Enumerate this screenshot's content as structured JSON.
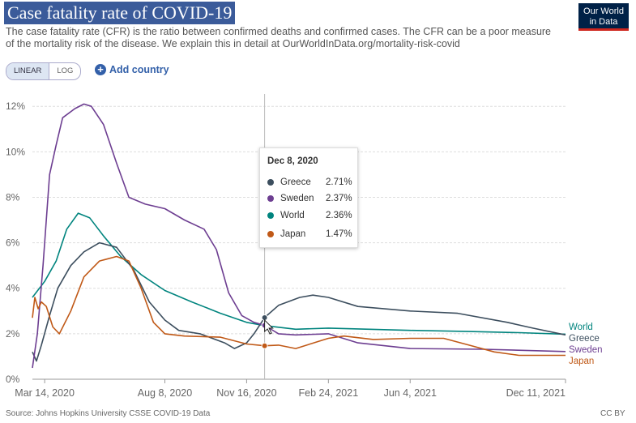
{
  "header": {
    "title": "Case fatality rate of COVID-19",
    "subtitle": "The case fatality rate (CFR) is the ratio between confirmed deaths and confirmed cases. The CFR can be a poor measure of the mortality risk of the disease. We explain this in detail at OurWorldInData.org/mortality-risk-covid",
    "logo_line1": "Our World",
    "logo_line2": "in Data"
  },
  "controls": {
    "linear_label": "LINEAR",
    "log_label": "LOG",
    "add_country_label": "Add country"
  },
  "tooltip": {
    "date": "Dec 8, 2020",
    "rows": [
      {
        "name": "Greece",
        "value": "2.71%"
      },
      {
        "name": "Sweden",
        "value": "2.37%"
      },
      {
        "name": "World",
        "value": "2.36%"
      },
      {
        "name": "Japan",
        "value": "1.47%"
      }
    ]
  },
  "footer": {
    "source": "Source: Johns Hopkins University CSSE COVID-19 Data",
    "license": "CC BY"
  },
  "colors": {
    "Greece": "#3c4e5e",
    "Sweden": "#6d3e91",
    "World": "#00847e",
    "Japan": "#c05917"
  },
  "chart_data": {
    "type": "line",
    "title": "Case fatality rate of COVID-19",
    "xlabel": "",
    "ylabel": "",
    "x_tick_labels": [
      "Mar 14, 2020",
      "Aug 8, 2020",
      "Nov 16, 2020",
      "Feb 24, 2021",
      "Jun 4, 2021",
      "Dec 11, 2021"
    ],
    "x_tick_dates": [
      "2020-03-14",
      "2020-08-08",
      "2020-11-16",
      "2021-02-24",
      "2021-06-04",
      "2021-12-11"
    ],
    "x_range": [
      "2020-02-28",
      "2021-12-11"
    ],
    "y_tick_labels": [
      "0%",
      "2%",
      "4%",
      "6%",
      "8%",
      "10%",
      "12%"
    ],
    "y_ticks": [
      0,
      2,
      4,
      6,
      8,
      10,
      12
    ],
    "ylim": [
      0,
      12.4
    ],
    "grid": "horizontal dashed",
    "legend_placement": "line-end labels right",
    "highlight_date": "2020-12-08",
    "series": [
      {
        "name": "World",
        "points": [
          [
            "2020-02-28",
            3.6
          ],
          [
            "2020-03-14",
            4.3
          ],
          [
            "2020-03-28",
            5.2
          ],
          [
            "2020-04-10",
            6.6
          ],
          [
            "2020-04-24",
            7.3
          ],
          [
            "2020-05-08",
            7.1
          ],
          [
            "2020-05-25",
            6.3
          ],
          [
            "2020-06-15",
            5.4
          ],
          [
            "2020-07-10",
            4.6
          ],
          [
            "2020-08-08",
            3.9
          ],
          [
            "2020-09-10",
            3.4
          ],
          [
            "2020-10-15",
            2.9
          ],
          [
            "2020-11-16",
            2.5
          ],
          [
            "2020-12-08",
            2.36
          ],
          [
            "2021-01-15",
            2.2
          ],
          [
            "2021-02-24",
            2.25
          ],
          [
            "2021-04-15",
            2.2
          ],
          [
            "2021-06-04",
            2.15
          ],
          [
            "2021-08-15",
            2.1
          ],
          [
            "2021-10-15",
            2.05
          ],
          [
            "2021-12-11",
            1.98
          ]
        ]
      },
      {
        "name": "Greece",
        "points": [
          [
            "2020-02-28",
            1.2
          ],
          [
            "2020-03-04",
            0.8
          ],
          [
            "2020-03-10",
            1.5
          ],
          [
            "2020-03-20",
            2.8
          ],
          [
            "2020-03-30",
            4.0
          ],
          [
            "2020-04-15",
            5.0
          ],
          [
            "2020-05-01",
            5.6
          ],
          [
            "2020-05-20",
            6.0
          ],
          [
            "2020-06-10",
            5.8
          ],
          [
            "2020-07-01",
            4.8
          ],
          [
            "2020-07-20",
            3.4
          ],
          [
            "2020-08-08",
            2.6
          ],
          [
            "2020-08-25",
            2.15
          ],
          [
            "2020-09-20",
            2.0
          ],
          [
            "2020-10-20",
            1.6
          ],
          [
            "2020-11-01",
            1.35
          ],
          [
            "2020-11-16",
            1.6
          ],
          [
            "2020-11-25",
            2.0
          ],
          [
            "2020-12-08",
            2.71
          ],
          [
            "2020-12-25",
            3.25
          ],
          [
            "2021-01-20",
            3.6
          ],
          [
            "2021-02-05",
            3.7
          ],
          [
            "2021-02-24",
            3.6
          ],
          [
            "2021-04-01",
            3.2
          ],
          [
            "2021-06-04",
            3.0
          ],
          [
            "2021-08-01",
            2.9
          ],
          [
            "2021-10-01",
            2.5
          ],
          [
            "2021-11-01",
            2.25
          ],
          [
            "2021-12-11",
            1.95
          ]
        ]
      },
      {
        "name": "Sweden",
        "points": [
          [
            "2020-02-28",
            0.5
          ],
          [
            "2020-03-05",
            2.0
          ],
          [
            "2020-03-12",
            5.0
          ],
          [
            "2020-03-20",
            9.0
          ],
          [
            "2020-03-28",
            10.3
          ],
          [
            "2020-04-05",
            11.5
          ],
          [
            "2020-04-20",
            11.9
          ],
          [
            "2020-05-01",
            12.1
          ],
          [
            "2020-05-10",
            12.0
          ],
          [
            "2020-05-25",
            11.2
          ],
          [
            "2020-06-10",
            9.5
          ],
          [
            "2020-06-25",
            8.0
          ],
          [
            "2020-07-15",
            7.7
          ],
          [
            "2020-08-08",
            7.5
          ],
          [
            "2020-09-01",
            7.0
          ],
          [
            "2020-09-25",
            6.6
          ],
          [
            "2020-10-10",
            5.7
          ],
          [
            "2020-10-25",
            3.8
          ],
          [
            "2020-11-10",
            2.8
          ],
          [
            "2020-11-25",
            2.5
          ],
          [
            "2020-12-08",
            2.37
          ],
          [
            "2020-12-25",
            2.0
          ],
          [
            "2021-01-15",
            1.95
          ],
          [
            "2021-02-24",
            2.0
          ],
          [
            "2021-04-01",
            1.6
          ],
          [
            "2021-06-04",
            1.35
          ],
          [
            "2021-09-01",
            1.32
          ],
          [
            "2021-12-11",
            1.22
          ]
        ]
      },
      {
        "name": "Japan",
        "points": [
          [
            "2020-02-28",
            2.7
          ],
          [
            "2020-03-02",
            3.6
          ],
          [
            "2020-03-06",
            3.1
          ],
          [
            "2020-03-10",
            3.4
          ],
          [
            "2020-03-16",
            3.2
          ],
          [
            "2020-03-24",
            2.3
          ],
          [
            "2020-04-01",
            2.0
          ],
          [
            "2020-04-15",
            3.0
          ],
          [
            "2020-05-01",
            4.5
          ],
          [
            "2020-05-20",
            5.2
          ],
          [
            "2020-06-10",
            5.4
          ],
          [
            "2020-06-25",
            5.2
          ],
          [
            "2020-07-10",
            4.0
          ],
          [
            "2020-07-25",
            2.5
          ],
          [
            "2020-08-08",
            2.0
          ],
          [
            "2020-09-01",
            1.9
          ],
          [
            "2020-10-15",
            1.85
          ],
          [
            "2020-11-16",
            1.55
          ],
          [
            "2020-12-08",
            1.47
          ],
          [
            "2020-12-25",
            1.5
          ],
          [
            "2021-01-15",
            1.35
          ],
          [
            "2021-02-24",
            1.8
          ],
          [
            "2021-03-15",
            1.9
          ],
          [
            "2021-04-20",
            1.75
          ],
          [
            "2021-06-04",
            1.8
          ],
          [
            "2021-07-15",
            1.8
          ],
          [
            "2021-08-15",
            1.5
          ],
          [
            "2021-09-15",
            1.2
          ],
          [
            "2021-10-15",
            1.05
          ],
          [
            "2021-12-11",
            1.05
          ]
        ]
      }
    ]
  }
}
